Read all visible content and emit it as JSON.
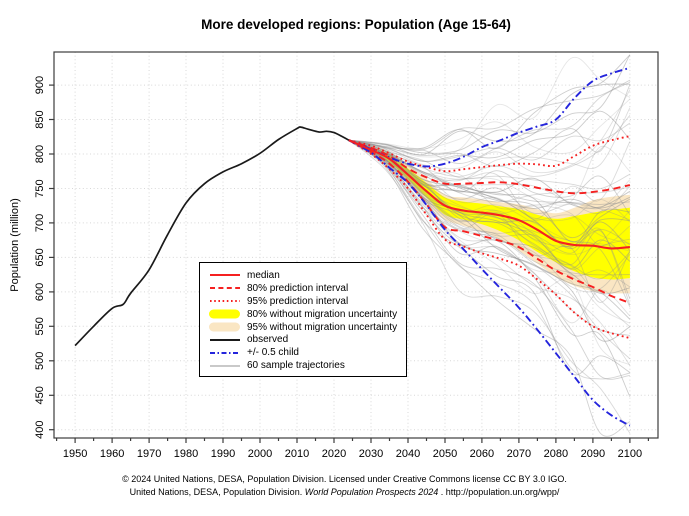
{
  "chart_data": {
    "type": "line",
    "title": "More developed regions: Population (Age 15-64)",
    "xlabel": "",
    "ylabel": "Population (million)",
    "xlim": [
      1944.3,
      2107.6
    ],
    "ylim": [
      388,
      948
    ],
    "grid": "dotted",
    "x_ticks": [
      1950,
      1960,
      1970,
      1980,
      1990,
      2000,
      2010,
      2020,
      2030,
      2040,
      2050,
      2060,
      2070,
      2080,
      2090,
      2100
    ],
    "x_minor_ticks": [
      1945,
      1955,
      1965,
      1975,
      1985,
      1995,
      2005,
      2015,
      2025,
      2035,
      2045,
      2055,
      2065,
      2075,
      2085,
      2095,
      2105
    ],
    "y_ticks": [
      400,
      450,
      500,
      550,
      600,
      650,
      700,
      750,
      800,
      850,
      900
    ],
    "observed": {
      "years": [
        1950,
        1955,
        1960,
        1963,
        1965,
        1970,
        1975,
        1980,
        1985,
        1990,
        1995,
        2000,
        2005,
        2010,
        2011,
        2013,
        2016,
        2018,
        2020,
        2022,
        2024
      ],
      "values": [
        522,
        550,
        576,
        582,
        598,
        632,
        683,
        729,
        757,
        774,
        786,
        801,
        821,
        837,
        839,
        836,
        832,
        833,
        831,
        826,
        820
      ]
    },
    "projection": {
      "years": [
        2024,
        2030,
        2035,
        2040,
        2045,
        2050,
        2055,
        2060,
        2065,
        2070,
        2075,
        2080,
        2085,
        2090,
        2095,
        2100
      ],
      "median": [
        820,
        806,
        793,
        770,
        746,
        725,
        718,
        715,
        711,
        704,
        690,
        674,
        668,
        667,
        663,
        665
      ],
      "pi80_upper": [
        820,
        809,
        797,
        779,
        766,
        757,
        757,
        758,
        759,
        756,
        751,
        746,
        743,
        745,
        749,
        755
      ],
      "pi80_lower": [
        820,
        803,
        786,
        760,
        727,
        694,
        688,
        681,
        674,
        665,
        648,
        631,
        618,
        607,
        594,
        584
      ],
      "pi95_upper": [
        820,
        812,
        801,
        789,
        781,
        775,
        778,
        781,
        784,
        786,
        785,
        783,
        797,
        812,
        820,
        826
      ],
      "pi95_lower": [
        820,
        800,
        778,
        750,
        712,
        676,
        666,
        656,
        648,
        638,
        618,
        596,
        570,
        550,
        540,
        533
      ],
      "half_child_upper": [
        820,
        807,
        795,
        786,
        782,
        786,
        796,
        810,
        820,
        831,
        840,
        850,
        881,
        906,
        917,
        925
      ],
      "half_child_lower": [
        820,
        802,
        780,
        758,
        726,
        690,
        662,
        633,
        605,
        577,
        545,
        511,
        477,
        443,
        421,
        406
      ]
    },
    "bands": {
      "years": [
        2024,
        2030,
        2035,
        2040,
        2045,
        2050,
        2055,
        2060,
        2065,
        2070,
        2075,
        2080,
        2085,
        2090,
        2095,
        2100
      ],
      "no_migration_80_upper": [
        820,
        810,
        799,
        779,
        758,
        737,
        731,
        728,
        724,
        720,
        712,
        706,
        710,
        715,
        719,
        722
      ],
      "no_migration_80_lower": [
        820,
        804,
        788,
        763,
        737,
        712,
        705,
        698,
        688,
        675,
        658,
        643,
        630,
        621,
        618,
        620
      ],
      "no_migration_95_upper": [
        820,
        812,
        803,
        784,
        764,
        741,
        737,
        734,
        730,
        727,
        720,
        714,
        722,
        733,
        738,
        741
      ],
      "no_migration_95_lower": [
        820,
        801,
        783,
        757,
        729,
        705,
        696,
        688,
        676,
        660,
        641,
        622,
        609,
        601,
        598,
        598
      ]
    },
    "sample_trajectories": {
      "count": 60,
      "end_spread": [
        415,
        938
      ]
    },
    "legend": [
      {
        "label": "median",
        "swatch": "line",
        "color": "#F52020",
        "dash": "solid"
      },
      {
        "label": "80% prediction interval",
        "swatch": "line",
        "color": "#F52020",
        "dash": "dashed"
      },
      {
        "label": "95% prediction interval",
        "swatch": "line",
        "color": "#F52020",
        "dash": "dotted"
      },
      {
        "label": "80% without migration uncertainty",
        "swatch": "fill",
        "color": "#FFFF00"
      },
      {
        "label": "95% without migration uncertainty",
        "swatch": "fill",
        "color": "#FAE6C3"
      },
      {
        "label": "observed",
        "swatch": "line",
        "color": "#1A1A1A",
        "dash": "solid"
      },
      {
        "label": "+/- 0.5 child",
        "swatch": "line",
        "color": "#2424DC",
        "dash": "dashdot"
      },
      {
        "label": "60 sample trajectories",
        "swatch": "line",
        "color": "#C9C9C9",
        "dash": "solid"
      }
    ],
    "colors": {
      "median": "#F52020",
      "prediction_interval": "#F52020",
      "no_migration_80": "#FFFF00",
      "no_migration_95": "#FAE6C3",
      "observed": "#1A1A1A",
      "half_child": "#2424DC",
      "trajectories": "#8F8F8F",
      "grid": "#D8D8D8",
      "frame": "#3C3C3C"
    },
    "legend_position": "bottom-left-of-center"
  },
  "footer": {
    "line1": "© 2024 United Nations, DESA, Population Division. Licensed under Creative Commons license CC BY 3.0 IGO.",
    "line2_prefix": "United Nations, DESA, Population Division. ",
    "line2_italic": "World Population Prospects 2024",
    "line2_suffix": " . http://population.un.org/wpp/"
  }
}
